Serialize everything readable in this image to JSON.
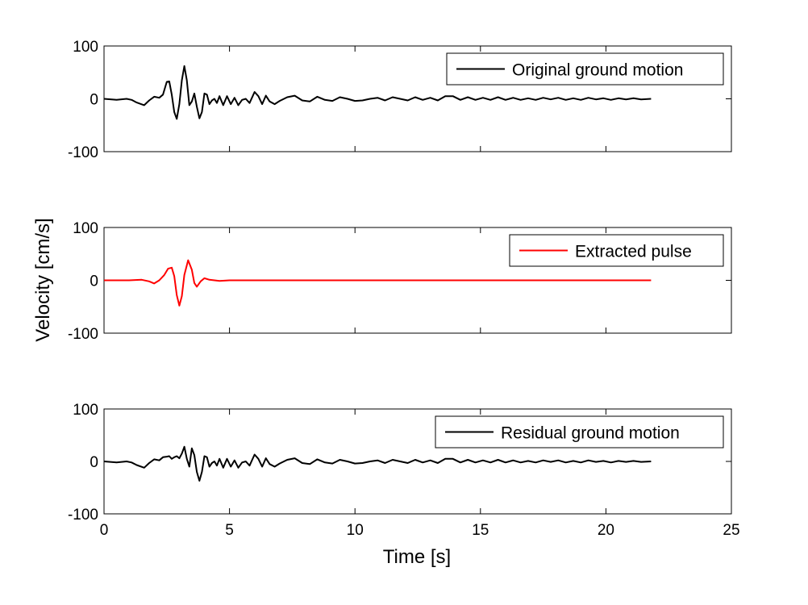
{
  "figure": {
    "ylabel": "Velocity [cm/s]",
    "xlabel": "Time [s]"
  },
  "chart_data": [
    {
      "type": "line",
      "title": "",
      "xlim": [
        0,
        25
      ],
      "ylim": [
        -100,
        100
      ],
      "yticks": [
        100,
        0,
        -100
      ],
      "ytick_labels": [
        "100",
        "0",
        "-100"
      ],
      "show_xtick_labels": false,
      "grid": false,
      "legend": {
        "position": "top-right"
      },
      "series": [
        {
          "name": "Original ground motion",
          "color": "#000000",
          "x": [
            0,
            0.5,
            0.9,
            1.1,
            1.3,
            1.6,
            1.8,
            2.0,
            2.2,
            2.35,
            2.5,
            2.6,
            2.7,
            2.8,
            2.9,
            3.0,
            3.1,
            3.2,
            3.3,
            3.4,
            3.5,
            3.6,
            3.7,
            3.8,
            3.9,
            4.0,
            4.1,
            4.2,
            4.3,
            4.4,
            4.5,
            4.6,
            4.75,
            4.9,
            5.05,
            5.2,
            5.35,
            5.5,
            5.65,
            5.8,
            6.0,
            6.15,
            6.3,
            6.45,
            6.6,
            6.8,
            7.0,
            7.3,
            7.6,
            7.9,
            8.2,
            8.5,
            8.8,
            9.1,
            9.4,
            9.7,
            10.0,
            10.3,
            10.6,
            10.9,
            11.2,
            11.5,
            11.8,
            12.1,
            12.4,
            12.7,
            13.0,
            13.3,
            13.6,
            13.9,
            14.2,
            14.5,
            14.8,
            15.1,
            15.4,
            15.7,
            16.0,
            16.3,
            16.6,
            16.9,
            17.2,
            17.5,
            17.8,
            18.1,
            18.4,
            18.7,
            19.0,
            19.3,
            19.6,
            19.9,
            20.2,
            20.5,
            20.8,
            21.1,
            21.4,
            21.8
          ],
          "y": [
            0,
            -2,
            0,
            -2,
            -7,
            -12,
            -3,
            4,
            2,
            8,
            32,
            33,
            8,
            -25,
            -38,
            -10,
            35,
            62,
            35,
            -12,
            -5,
            10,
            -15,
            -37,
            -25,
            10,
            8,
            -10,
            -3,
            0,
            -8,
            5,
            -12,
            5,
            -10,
            2,
            -12,
            -2,
            0,
            -8,
            13,
            5,
            -10,
            6,
            -5,
            -10,
            -4,
            3,
            6,
            -3,
            -5,
            4,
            -2,
            -4,
            3,
            0,
            -4,
            -3,
            0,
            2,
            -3,
            3,
            0,
            -3,
            3,
            -2,
            2,
            -3,
            5,
            5,
            -2,
            3,
            -2,
            2,
            -2,
            3,
            -2,
            2,
            -2,
            1,
            -2,
            2,
            -1,
            2,
            -2,
            1,
            -2,
            2,
            -1,
            1,
            -2,
            1,
            -1,
            1,
            -1,
            0
          ]
        }
      ]
    },
    {
      "type": "line",
      "title": "",
      "xlim": [
        0,
        25
      ],
      "ylim": [
        -100,
        100
      ],
      "yticks": [
        100,
        0,
        -100
      ],
      "ytick_labels": [
        "100",
        "0",
        "-100"
      ],
      "show_xtick_labels": false,
      "grid": false,
      "legend": {
        "position": "top-right"
      },
      "series": [
        {
          "name": "Extracted pulse",
          "color": "#ff0000",
          "x": [
            0,
            1.0,
            1.5,
            1.8,
            2.0,
            2.2,
            2.4,
            2.55,
            2.7,
            2.8,
            2.9,
            3.0,
            3.1,
            3.2,
            3.35,
            3.5,
            3.6,
            3.7,
            3.85,
            4.0,
            4.2,
            4.6,
            5.0,
            21.8
          ],
          "y": [
            0,
            0,
            1,
            -2,
            -6,
            0,
            10,
            22,
            24,
            8,
            -28,
            -48,
            -30,
            10,
            38,
            20,
            -5,
            -12,
            -2,
            4,
            1,
            -1,
            0,
            0
          ]
        }
      ]
    },
    {
      "type": "line",
      "title": "",
      "xlim": [
        0,
        25
      ],
      "ylim": [
        -100,
        100
      ],
      "yticks": [
        100,
        0,
        -100
      ],
      "ytick_labels": [
        "100",
        "0",
        "-100"
      ],
      "xticks": [
        0,
        5,
        10,
        15,
        20,
        25
      ],
      "xtick_labels": [
        "0",
        "5",
        "10",
        "15",
        "20",
        "25"
      ],
      "show_xtick_labels": true,
      "grid": false,
      "legend": {
        "position": "top-right"
      },
      "series": [
        {
          "name": "Residual ground motion",
          "color": "#000000",
          "x": [
            0,
            0.5,
            0.9,
            1.1,
            1.3,
            1.6,
            1.8,
            2.0,
            2.2,
            2.35,
            2.5,
            2.6,
            2.7,
            2.8,
            2.9,
            3.0,
            3.1,
            3.2,
            3.3,
            3.4,
            3.5,
            3.6,
            3.7,
            3.8,
            3.9,
            4.0,
            4.1,
            4.2,
            4.3,
            4.4,
            4.5,
            4.6,
            4.75,
            4.9,
            5.05,
            5.2,
            5.35,
            5.5,
            5.65,
            5.8,
            6.0,
            6.15,
            6.3,
            6.45,
            6.6,
            6.8,
            7.0,
            7.3,
            7.6,
            7.9,
            8.2,
            8.5,
            8.8,
            9.1,
            9.4,
            9.7,
            10.0,
            10.3,
            10.6,
            10.9,
            11.2,
            11.5,
            11.8,
            12.1,
            12.4,
            12.7,
            13.0,
            13.3,
            13.6,
            13.9,
            14.2,
            14.5,
            14.8,
            15.1,
            15.4,
            15.7,
            16.0,
            16.3,
            16.6,
            16.9,
            17.2,
            17.5,
            17.8,
            18.1,
            18.4,
            18.7,
            19.0,
            19.3,
            19.6,
            19.9,
            20.2,
            20.5,
            20.8,
            21.1,
            21.4,
            21.8
          ],
          "y": [
            0,
            -2,
            0,
            -2,
            -7,
            -12,
            -3,
            4,
            2,
            8,
            9,
            10,
            5,
            8,
            10,
            6,
            15,
            28,
            5,
            -10,
            25,
            12,
            -20,
            -37,
            -20,
            10,
            8,
            -10,
            -3,
            0,
            -8,
            5,
            -12,
            5,
            -10,
            2,
            -12,
            -2,
            0,
            -8,
            13,
            5,
            -10,
            6,
            -5,
            -10,
            -4,
            3,
            6,
            -3,
            -5,
            4,
            -2,
            -4,
            3,
            0,
            -4,
            -3,
            0,
            2,
            -3,
            3,
            0,
            -3,
            3,
            -2,
            2,
            -3,
            5,
            5,
            -2,
            3,
            -2,
            2,
            -2,
            3,
            -2,
            2,
            -2,
            1,
            -2,
            2,
            -1,
            2,
            -2,
            1,
            -2,
            2,
            -1,
            1,
            -2,
            1,
            -1,
            1,
            -1,
            0
          ]
        }
      ]
    }
  ]
}
